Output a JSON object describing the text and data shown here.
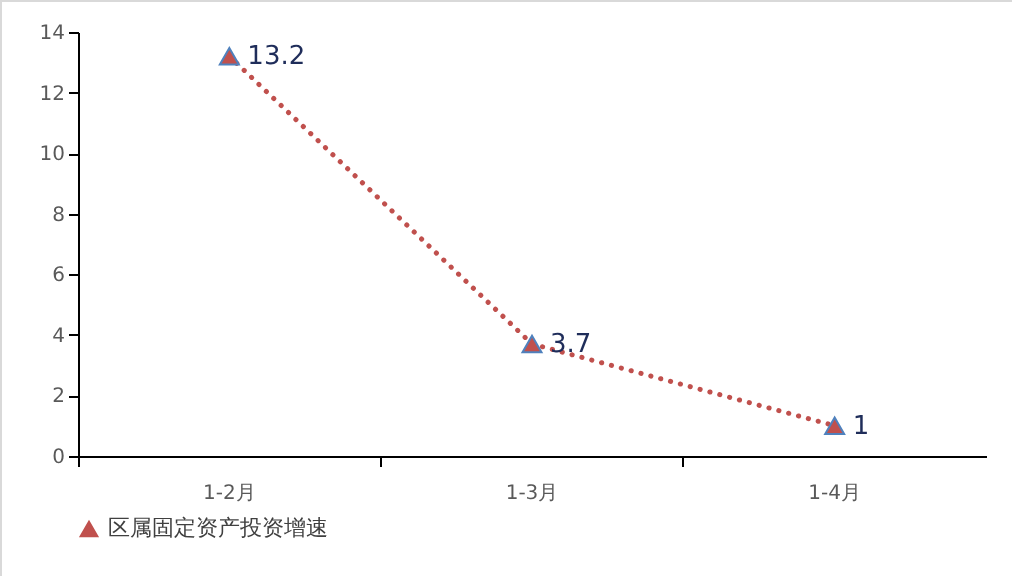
{
  "chart_data": {
    "type": "line",
    "categories": [
      "1-2月",
      "1-3月",
      "1-4月"
    ],
    "series": [
      {
        "name": "区属固定资产投资增速",
        "color": "#c0504d",
        "values": [
          13.2,
          3.7,
          1
        ]
      }
    ],
    "ylim": [
      0,
      14
    ],
    "yticks": [
      0,
      2,
      4,
      6,
      8,
      10,
      12,
      14
    ],
    "grid": false,
    "legend": "bottom",
    "marker": "triangle",
    "line_style": "dotted",
    "data_labels": true
  }
}
